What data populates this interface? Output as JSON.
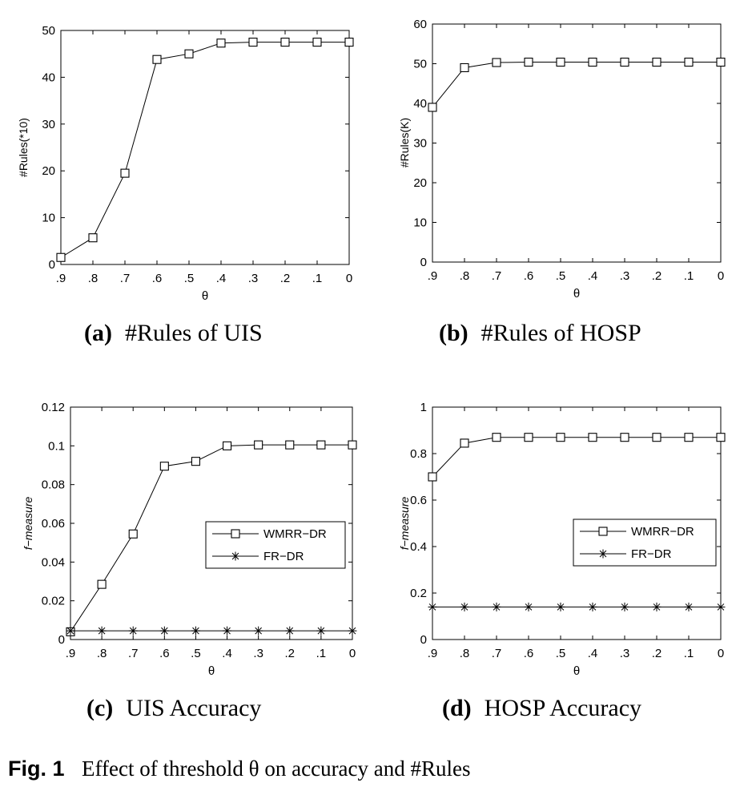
{
  "figure_caption": {
    "label": "Fig. 1",
    "text": "Effect of threshold θ on accuracy and #Rules"
  },
  "chart_data": [
    {
      "type": "line",
      "caption_letter": "(a)",
      "title": "#Rules of UIS",
      "xlabel": "θ",
      "ylabel": "#Rules(*10)",
      "categories": [
        ".9",
        ".8",
        ".7",
        ".6",
        ".5",
        ".4",
        ".3",
        ".2",
        ".1",
        "0"
      ],
      "yticks": [
        "0",
        "10",
        "20",
        "30",
        "40",
        "50"
      ],
      "ylim": [
        0,
        50
      ],
      "series": [
        {
          "values": [
            1.5,
            5.7,
            19.5,
            43.8,
            45,
            47.3,
            47.5,
            47.5,
            47.5,
            47.5
          ],
          "marker": "square"
        }
      ]
    },
    {
      "type": "line",
      "caption_letter": "(b)",
      "title": "#Rules of HOSP",
      "xlabel": "θ",
      "ylabel": "#Rules(K)",
      "categories": [
        ".9",
        ".8",
        ".7",
        ".6",
        ".5",
        ".4",
        ".3",
        ".2",
        ".1",
        "0"
      ],
      "yticks": [
        "0",
        "10",
        "20",
        "30",
        "40",
        "50",
        "60"
      ],
      "ylim": [
        0,
        60
      ],
      "series": [
        {
          "values": [
            39,
            49,
            50.3,
            50.4,
            50.4,
            50.4,
            50.4,
            50.4,
            50.4,
            50.4
          ],
          "marker": "square"
        }
      ]
    },
    {
      "type": "line",
      "caption_letter": "(c)",
      "title": "UIS Accuracy",
      "xlabel": "θ",
      "ylabel": "f−measure",
      "categories": [
        ".9",
        ".8",
        ".7",
        ".6",
        ".5",
        ".4",
        ".3",
        ".2",
        ".1",
        "0"
      ],
      "yticks": [
        "0",
        "0.02",
        "0.04",
        "0.06",
        "0.08",
        "0.1",
        "0.12"
      ],
      "ylim": [
        0,
        0.12
      ],
      "legend": "right",
      "series": [
        {
          "name": "WMRR−DR",
          "values": [
            0.004,
            0.0285,
            0.0545,
            0.0895,
            0.092,
            0.1,
            0.1005,
            0.1005,
            0.1005,
            0.1005
          ],
          "marker": "square"
        },
        {
          "name": "FR−DR",
          "values": [
            0.0045,
            0.0045,
            0.0045,
            0.0045,
            0.0045,
            0.0045,
            0.0045,
            0.0045,
            0.0045,
            0.0045
          ],
          "marker": "star"
        }
      ]
    },
    {
      "type": "line",
      "caption_letter": "(d)",
      "title": "HOSP Accuracy",
      "xlabel": "θ",
      "ylabel": "f−measure",
      "categories": [
        ".9",
        ".8",
        ".7",
        ".6",
        ".5",
        ".4",
        ".3",
        ".2",
        ".1",
        "0"
      ],
      "yticks": [
        "0",
        "0.2",
        "0.4",
        "0.6",
        "0.8",
        "1"
      ],
      "ylim": [
        0,
        1
      ],
      "legend": "right",
      "series": [
        {
          "name": "WMRR−DR",
          "values": [
            0.7,
            0.845,
            0.87,
            0.87,
            0.87,
            0.87,
            0.87,
            0.87,
            0.87,
            0.87
          ],
          "marker": "square"
        },
        {
          "name": "FR−DR",
          "values": [
            0.14,
            0.14,
            0.14,
            0.14,
            0.14,
            0.14,
            0.14,
            0.14,
            0.14,
            0.14
          ],
          "marker": "star"
        }
      ]
    }
  ]
}
